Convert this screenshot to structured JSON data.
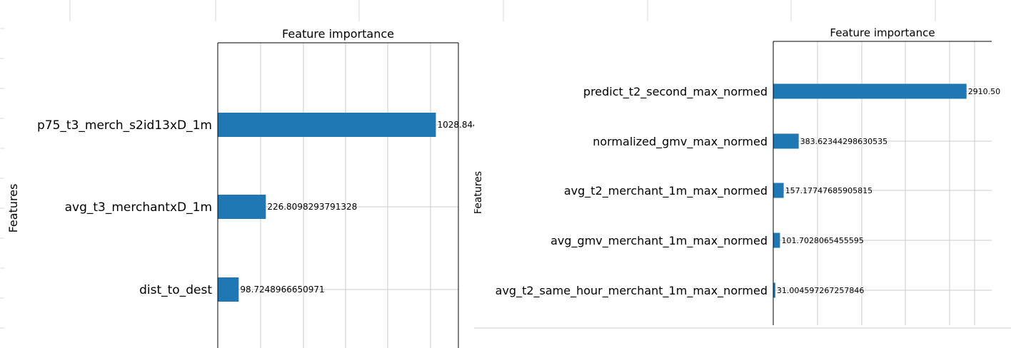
{
  "colors": {
    "bar": "#1f77b4",
    "grid": "#cccccc",
    "spine": "#000000",
    "sheet_grid": "#d9d9d9"
  },
  "chart_data": [
    {
      "type": "bar",
      "orientation": "horizontal",
      "title": "Feature importance",
      "ylabel": "Features",
      "grid": true,
      "categories": [
        "dist_to_dest",
        "avg_t3_merchantxD_1m",
        "p75_t3_merch_s2id13xD_1m"
      ],
      "values": [
        98.7248966650971,
        226.8098293791328,
        1028.844
      ],
      "value_labels": [
        "98.7248966650971",
        "226.8098293791328",
        "1028.844"
      ],
      "xlim": [
        0,
        1135
      ]
    },
    {
      "type": "bar",
      "orientation": "horizontal",
      "title": "Feature importance",
      "ylabel": "Features",
      "grid": true,
      "categories": [
        "avg_t2_same_hour_merchant_1m_max_normed",
        "avg_gmv_merchant_1m_max_normed",
        "avg_t2_merchant_1m_max_normed",
        "normalized_gmv_max_normed",
        "predict_t2_second_max_normed"
      ],
      "values": [
        31.004597267257846,
        101.7028065455595,
        157.17747685905815,
        383.62344298630535,
        2910.5
      ],
      "value_labels": [
        "31.004597267257846",
        "101.7028065455595",
        "157.17747685905815",
        "383.62344298630535",
        "2910.50"
      ],
      "xlim": [
        0,
        3290
      ]
    }
  ]
}
